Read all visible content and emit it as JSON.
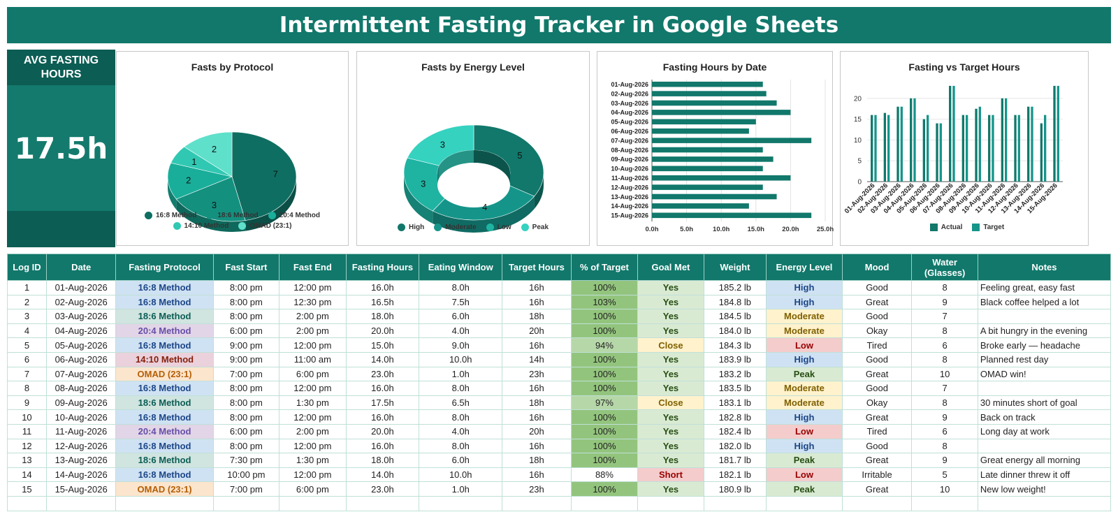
{
  "title": "Intermittent Fasting Tracker in Google Sheets",
  "kpi": {
    "label": "AVG FASTING HOURS",
    "value": "17.5h"
  },
  "colors": {
    "brand": "#11786b",
    "dark": "#0c5d53",
    "protocol": {
      "16:8 Method": "#cfe2f3",
      "18:6 Method": "#d0e4e0",
      "20:4 Method": "#e1d5e7",
      "14:10 Method": "#ead1dc",
      "OMAD (23:1)": "#fce5cd"
    },
    "protocol_text": {
      "16:8 Method": "#1c4587",
      "18:6 Method": "#0b5d53",
      "20:4 Method": "#674ea7",
      "14:10 Method": "#85200c",
      "OMAD (23:1)": "#b45f06"
    },
    "goal": {
      "Yes": "#d9ead3",
      "Close": "#fff2cc",
      "Short": "#f4cccc"
    },
    "goal_text": {
      "Yes": "#274e13",
      "Close": "#7f6000",
      "Short": "#990000"
    },
    "energy": {
      "High": "#cfe2f3",
      "Moderate": "#fff2cc",
      "Low": "#f4cccc",
      "Peak": "#d9ead3"
    },
    "energy_text": {
      "High": "#1c4587",
      "Moderate": "#7f6000",
      "Low": "#990000",
      "Peak": "#274e13"
    },
    "pct_full": "#93c47d",
    "pct_mid": "#b6d7a8",
    "pct_low": "#d9ead3"
  },
  "chart_data": [
    {
      "type": "pie",
      "title": "Fasts by Protocol",
      "categories": [
        "16:8 Method",
        "18:6 Method",
        "20:4 Method",
        "14:10 Method",
        "OMAD (23:1)"
      ],
      "values": [
        7,
        3,
        2,
        1,
        2
      ],
      "colors": [
        "#0f6e62",
        "#14907f",
        "#19ae9a",
        "#30c8b2",
        "#5fe0cb"
      ],
      "legend": "bottom"
    },
    {
      "type": "pie",
      "title": "Fasts by Energy Level",
      "categories": [
        "High",
        "Moderate",
        "Low",
        "Peak"
      ],
      "values": [
        5,
        4,
        3,
        3
      ],
      "colors": [
        "#11786b",
        "#15958a",
        "#1fb3a2",
        "#35d2c0"
      ],
      "legend": "bottom"
    },
    {
      "type": "bar",
      "title": "Fasting Hours by Date",
      "orientation": "horizontal",
      "categories": [
        "01-Aug-2026",
        "02-Aug-2026",
        "03-Aug-2026",
        "04-Aug-2026",
        "05-Aug-2026",
        "06-Aug-2026",
        "07-Aug-2026",
        "08-Aug-2026",
        "09-Aug-2026",
        "10-Aug-2026",
        "11-Aug-2026",
        "12-Aug-2026",
        "13-Aug-2026",
        "14-Aug-2026",
        "15-Aug-2026"
      ],
      "values": [
        16,
        16.5,
        18,
        20,
        15,
        14,
        23,
        16,
        17.5,
        16,
        20,
        16,
        18,
        14,
        23
      ],
      "xticks": [
        "0.0h",
        "5.0h",
        "10.0h",
        "15.0h",
        "20.0h",
        "25.0h"
      ],
      "xlim": [
        0,
        25
      ],
      "color": "#11786b",
      "grid": true
    },
    {
      "type": "bar",
      "title": "Fasting vs Target Hours",
      "categories": [
        "01-Aug-2026",
        "02-Aug-2026",
        "03-Aug-2026",
        "04-Aug-2026",
        "05-Aug-2026",
        "06-Aug-2026",
        "07-Aug-2026",
        "08-Aug-2026",
        "09-Aug-2026",
        "10-Aug-2026",
        "11-Aug-2026",
        "12-Aug-2026",
        "13-Aug-2026",
        "14-Aug-2026",
        "15-Aug-2026"
      ],
      "series": [
        {
          "name": "Actual",
          "values": [
            16,
            16.5,
            18,
            20,
            15,
            14,
            23,
            16,
            17.5,
            16,
            20,
            16,
            18,
            14,
            23
          ],
          "color": "#11786b"
        },
        {
          "name": "Target",
          "values": [
            16,
            16,
            18,
            20,
            16,
            14,
            23,
            16,
            18,
            16,
            20,
            16,
            18,
            16,
            23
          ],
          "color": "#15958a"
        }
      ],
      "yticks": [
        "0",
        "5",
        "10",
        "15",
        "20"
      ],
      "ylim": [
        0,
        25
      ],
      "legend": "bottom",
      "grid": true
    }
  ],
  "table": {
    "headers": [
      "Log ID",
      "Date",
      "Fasting Protocol",
      "Fast Start",
      "Fast End",
      "Fasting Hours",
      "Eating Window",
      "Target Hours",
      "% of Target",
      "Goal Met",
      "Weight",
      "Energy Level",
      "Mood",
      "Water (Glasses)",
      "Notes"
    ],
    "rows": [
      [
        "1",
        "01-Aug-2026",
        "16:8 Method",
        "8:00 pm",
        "12:00 pm",
        "16.0h",
        "8.0h",
        "16h",
        "100%",
        "Yes",
        "185.2 lb",
        "High",
        "Good",
        "8",
        "Feeling great, easy fast"
      ],
      [
        "2",
        "02-Aug-2026",
        "16:8 Method",
        "8:00 pm",
        "12:30 pm",
        "16.5h",
        "7.5h",
        "16h",
        "103%",
        "Yes",
        "184.8 lb",
        "High",
        "Great",
        "9",
        "Black coffee helped a lot"
      ],
      [
        "3",
        "03-Aug-2026",
        "18:6 Method",
        "8:00 pm",
        "2:00 pm",
        "18.0h",
        "6.0h",
        "18h",
        "100%",
        "Yes",
        "184.5 lb",
        "Moderate",
        "Good",
        "7",
        ""
      ],
      [
        "4",
        "04-Aug-2026",
        "20:4 Method",
        "6:00 pm",
        "2:00 pm",
        "20.0h",
        "4.0h",
        "20h",
        "100%",
        "Yes",
        "184.0 lb",
        "Moderate",
        "Okay",
        "8",
        "A bit hungry in the evening"
      ],
      [
        "5",
        "05-Aug-2026",
        "16:8 Method",
        "9:00 pm",
        "12:00 pm",
        "15.0h",
        "9.0h",
        "16h",
        "94%",
        "Close",
        "184.3 lb",
        "Low",
        "Tired",
        "6",
        "Broke early — headache"
      ],
      [
        "6",
        "06-Aug-2026",
        "14:10 Method",
        "9:00 pm",
        "11:00 am",
        "14.0h",
        "10.0h",
        "14h",
        "100%",
        "Yes",
        "183.9 lb",
        "High",
        "Good",
        "8",
        "Planned rest day"
      ],
      [
        "7",
        "07-Aug-2026",
        "OMAD (23:1)",
        "7:00 pm",
        "6:00 pm",
        "23.0h",
        "1.0h",
        "23h",
        "100%",
        "Yes",
        "183.2 lb",
        "Peak",
        "Great",
        "10",
        "OMAD win!"
      ],
      [
        "8",
        "08-Aug-2026",
        "16:8 Method",
        "8:00 pm",
        "12:00 pm",
        "16.0h",
        "8.0h",
        "16h",
        "100%",
        "Yes",
        "183.5 lb",
        "Moderate",
        "Good",
        "7",
        ""
      ],
      [
        "9",
        "09-Aug-2026",
        "18:6 Method",
        "8:00 pm",
        "1:30 pm",
        "17.5h",
        "6.5h",
        "18h",
        "97%",
        "Close",
        "183.1 lb",
        "Moderate",
        "Okay",
        "8",
        "30 minutes short of goal"
      ],
      [
        "10",
        "10-Aug-2026",
        "16:8 Method",
        "8:00 pm",
        "12:00 pm",
        "16.0h",
        "8.0h",
        "16h",
        "100%",
        "Yes",
        "182.8 lb",
        "High",
        "Great",
        "9",
        "Back on track"
      ],
      [
        "11",
        "11-Aug-2026",
        "20:4 Method",
        "6:00 pm",
        "2:00 pm",
        "20.0h",
        "4.0h",
        "20h",
        "100%",
        "Yes",
        "182.4 lb",
        "Low",
        "Tired",
        "6",
        "Long day at work"
      ],
      [
        "12",
        "12-Aug-2026",
        "16:8 Method",
        "8:00 pm",
        "12:00 pm",
        "16.0h",
        "8.0h",
        "16h",
        "100%",
        "Yes",
        "182.0 lb",
        "High",
        "Good",
        "8",
        ""
      ],
      [
        "13",
        "13-Aug-2026",
        "18:6 Method",
        "7:30 pm",
        "1:30 pm",
        "18.0h",
        "6.0h",
        "18h",
        "100%",
        "Yes",
        "181.7 lb",
        "Peak",
        "Great",
        "9",
        "Great energy all morning"
      ],
      [
        "14",
        "14-Aug-2026",
        "16:8 Method",
        "10:00 pm",
        "12:00 pm",
        "14.0h",
        "10.0h",
        "16h",
        "88%",
        "Short",
        "182.1 lb",
        "Low",
        "Irritable",
        "5",
        "Late dinner threw it off"
      ],
      [
        "15",
        "15-Aug-2026",
        "OMAD (23:1)",
        "7:00 pm",
        "6:00 pm",
        "23.0h",
        "1.0h",
        "23h",
        "100%",
        "Yes",
        "180.9 lb",
        "Peak",
        "Great",
        "10",
        "New low weight!"
      ]
    ]
  }
}
